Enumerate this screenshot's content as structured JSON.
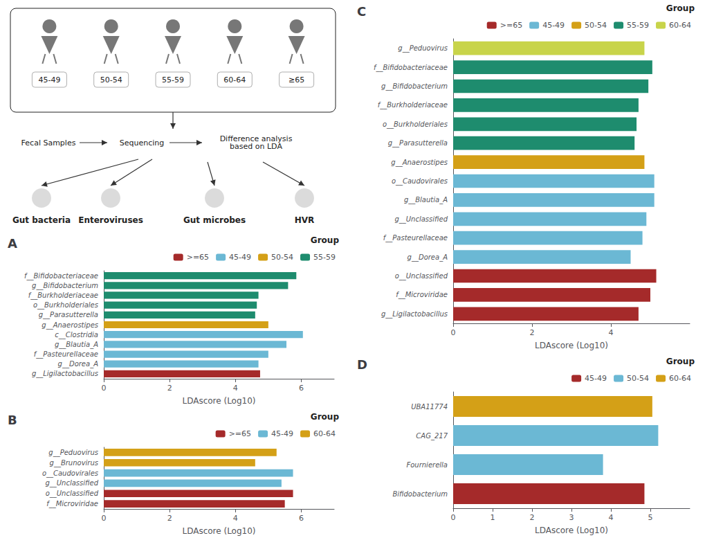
{
  "chart_data": [
    {
      "type": "diagram",
      "annotations": [
        "45-49",
        "50-54",
        "55-59",
        "60-64",
        "≥65",
        "Fecal Samples",
        "Sequencing",
        "Difference analysis\nbased on LDA",
        "Gut bacteria",
        "Enteroviruses",
        "Gut microbes",
        "HVR"
      ]
    },
    {
      "type": "bar",
      "title": "A",
      "orientation": "horizontal",
      "stacked": true,
      "grid": false,
      "legend": "upper right",
      "annotations": [
        "Group"
      ],
      "categories": [
        "f__Bifidobacteriaceae",
        "g__Bifidobacterium",
        "f__Burkholderiaceae",
        "o__Burkholderiales",
        "g__Parasutterella",
        "g__Anaerostipes",
        "c__Clostridia",
        "g__Blautia_A",
        "f__Pasteurellaceae",
        "g__Dorea_A",
        "g__Ligilactobacillus"
      ],
      "series": [
        {
          "name": ">=65",
          "color": "#A52A2A",
          "values": [
            null,
            null,
            null,
            null,
            null,
            null,
            null,
            null,
            null,
            null,
            4.75
          ]
        },
        {
          "name": "45-49",
          "color": "#6BB8D4",
          "values": [
            null,
            null,
            null,
            null,
            null,
            null,
            6.05,
            5.55,
            5.0,
            4.7,
            null
          ]
        },
        {
          "name": "50-54",
          "color": "#D4A017",
          "values": [
            null,
            null,
            null,
            null,
            null,
            5.0,
            null,
            null,
            null,
            null,
            null
          ]
        },
        {
          "name": "55-59",
          "color": "#1E8C6E",
          "values": [
            5.85,
            5.6,
            4.7,
            4.65,
            4.6,
            null,
            null,
            null,
            null,
            null,
            null
          ]
        }
      ],
      "xlim": [
        0,
        7
      ],
      "xticks": [
        0,
        2,
        4,
        6
      ],
      "xlabel": "LDAscore (Log10)"
    },
    {
      "type": "bar",
      "title": "B",
      "orientation": "horizontal",
      "stacked": true,
      "grid": false,
      "legend": "upper right",
      "annotations": [
        "Group"
      ],
      "categories": [
        "g__Peduovirus",
        "g__Brunovirus",
        "o__Caudovirales",
        "g__Unclassified",
        "o__Unclassified",
        "f__Microviridae"
      ],
      "series": [
        {
          "name": ">=65",
          "color": "#A52A2A",
          "values": [
            null,
            null,
            null,
            null,
            5.75,
            5.5
          ]
        },
        {
          "name": "45-49",
          "color": "#6BB8D4",
          "values": [
            null,
            null,
            5.75,
            5.4,
            null,
            null
          ]
        },
        {
          "name": "60-64",
          "color": "#D4A017",
          "values": [
            5.25,
            4.6,
            null,
            null,
            null,
            null
          ]
        }
      ],
      "xlim": [
        0,
        7
      ],
      "xticks": [
        0,
        2,
        4,
        6
      ],
      "xlabel": "LDAscore (Log10)"
    },
    {
      "type": "bar",
      "title": "C",
      "orientation": "horizontal",
      "stacked": true,
      "grid": false,
      "legend": "upper right",
      "annotations": [
        "Group"
      ],
      "categories": [
        "g__Peduovirus",
        "f__Bifidobacteriaceae",
        "g__Bifidobacterium",
        "f__Burkholderiaceae",
        "o__Burkholderiales",
        "g__Parasutterella",
        "g__Anaerostipes",
        "o__Caudovirales",
        "g__Blautia_A",
        "g__Unclassified",
        "f__Pasteurellaceae",
        "g__Dorea_A",
        "o__Unclassified",
        "f__Microviridae",
        "g__Ligilactobacillus"
      ],
      "series": [
        {
          "name": ">=65",
          "color": "#A52A2A",
          "values": [
            null,
            null,
            null,
            null,
            null,
            null,
            null,
            null,
            null,
            null,
            null,
            null,
            5.15,
            5.0,
            4.7
          ]
        },
        {
          "name": "45-49",
          "color": "#6BB8D4",
          "values": [
            null,
            null,
            null,
            null,
            null,
            null,
            null,
            5.1,
            5.1,
            4.9,
            4.8,
            4.5,
            null,
            null,
            null
          ]
        },
        {
          "name": "50-54",
          "color": "#D4A017",
          "values": [
            null,
            null,
            null,
            null,
            null,
            null,
            4.85,
            null,
            null,
            null,
            null,
            null,
            null,
            null,
            null
          ]
        },
        {
          "name": "55-59",
          "color": "#1E8C6E",
          "values": [
            null,
            5.05,
            4.95,
            4.7,
            4.65,
            4.6,
            null,
            null,
            null,
            null,
            null,
            null,
            null,
            null,
            null
          ]
        },
        {
          "name": "60-64",
          "color": "#C8D44A",
          "values": [
            4.85,
            null,
            null,
            null,
            null,
            null,
            null,
            null,
            null,
            null,
            null,
            null,
            null,
            null,
            null
          ]
        }
      ],
      "xlim": [
        0,
        6
      ],
      "xticks": [
        0,
        2,
        4
      ],
      "xlabel": "LDAscore (Log10)"
    },
    {
      "type": "bar",
      "title": "D",
      "orientation": "horizontal",
      "stacked": true,
      "grid": false,
      "legend": "upper right",
      "annotations": [
        "Group"
      ],
      "categories": [
        "UBA11774",
        "CAG_217",
        "Fournierella",
        "Bifidobacterium"
      ],
      "series": [
        {
          "name": "45-49",
          "color": "#A52A2A",
          "values": [
            null,
            null,
            null,
            4.85
          ]
        },
        {
          "name": "50-54",
          "color": "#6BB8D4",
          "values": [
            null,
            5.2,
            3.8,
            null
          ]
        },
        {
          "name": "60-64",
          "color": "#D4A017",
          "values": [
            5.05,
            null,
            null,
            null
          ]
        }
      ],
      "xlim": [
        0,
        6
      ],
      "xticks": [
        0,
        1,
        2,
        3,
        4,
        5
      ],
      "xlabel": "LDAscore (Log10)"
    }
  ]
}
